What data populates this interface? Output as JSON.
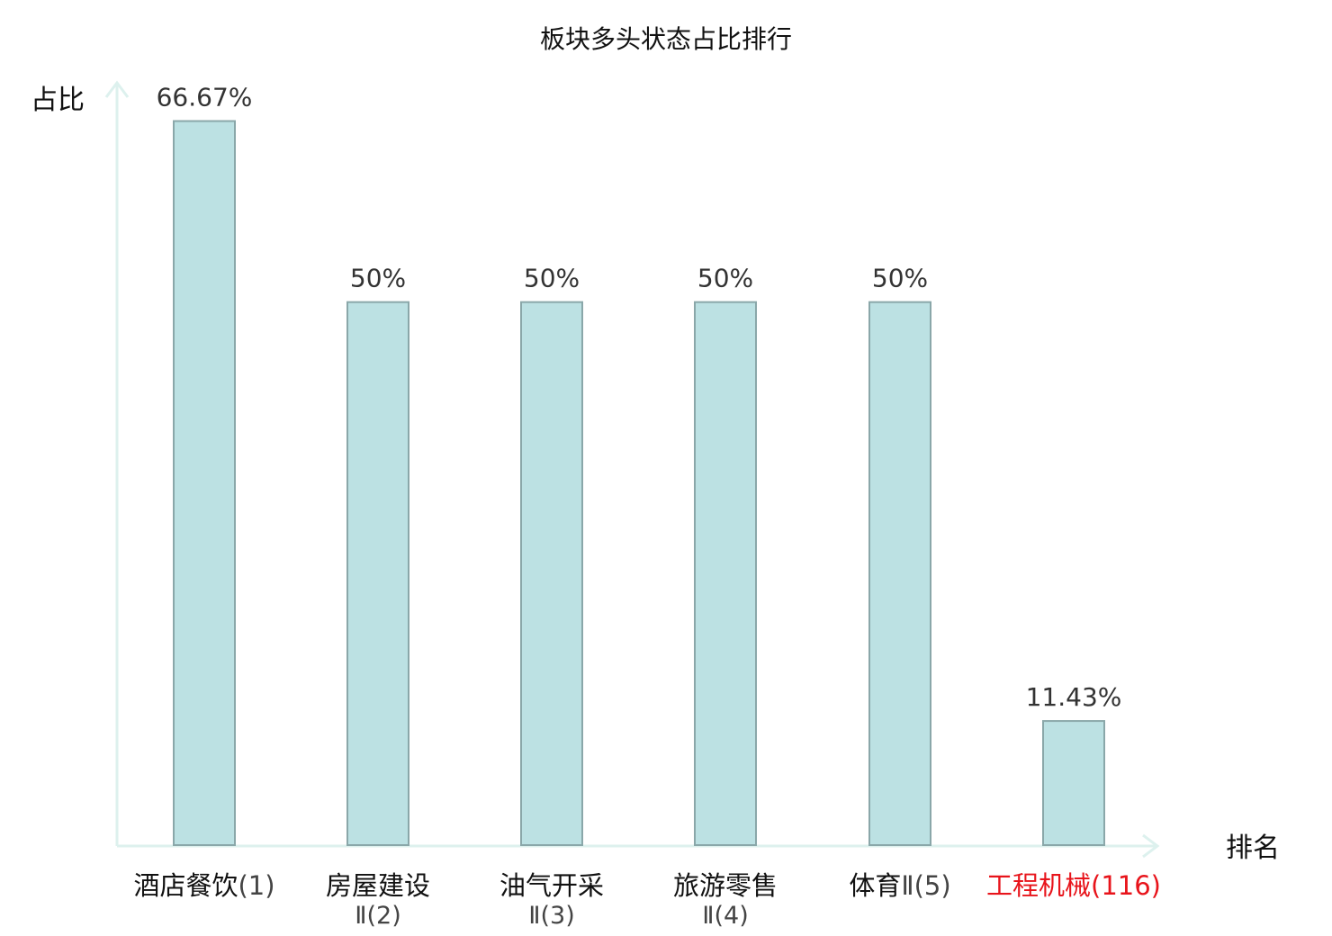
{
  "chart_data": {
    "type": "bar",
    "title": "板块多头状态占比排行",
    "ylabel": "占比",
    "xlabel": "排名",
    "ylim": [
      0,
      75
    ],
    "categories": [
      {
        "line1": "酒店餐饮",
        "line1_suffix": "(1)",
        "line2": "",
        "highlight": false
      },
      {
        "line1": "房屋建设",
        "line1_suffix": "",
        "line2": "Ⅱ(2)",
        "highlight": false
      },
      {
        "line1": "油气开采",
        "line1_suffix": "",
        "line2": "Ⅱ(3)",
        "highlight": false
      },
      {
        "line1": "旅游零售",
        "line1_suffix": "",
        "line2": "Ⅱ(4)",
        "highlight": false
      },
      {
        "line1": "体育",
        "line1_suffix": "Ⅱ(5)",
        "line2": "",
        "highlight": false
      },
      {
        "line1": "工程机械",
        "line1_suffix": "(116)",
        "line2": "",
        "highlight": true
      }
    ],
    "values": [
      66.67,
      50,
      50,
      50,
      50,
      11.43
    ],
    "value_labels": [
      "66.67%",
      "50%",
      "50%",
      "50%",
      "50%",
      "11.43%"
    ],
    "grid": false,
    "colors": {
      "bar_fill": "#bce1e3",
      "bar_stroke": "#8aa7a9",
      "axis": "#ddf1ee",
      "label": "#111111",
      "sublabel": "#444444",
      "highlight": "#e8141b"
    }
  }
}
